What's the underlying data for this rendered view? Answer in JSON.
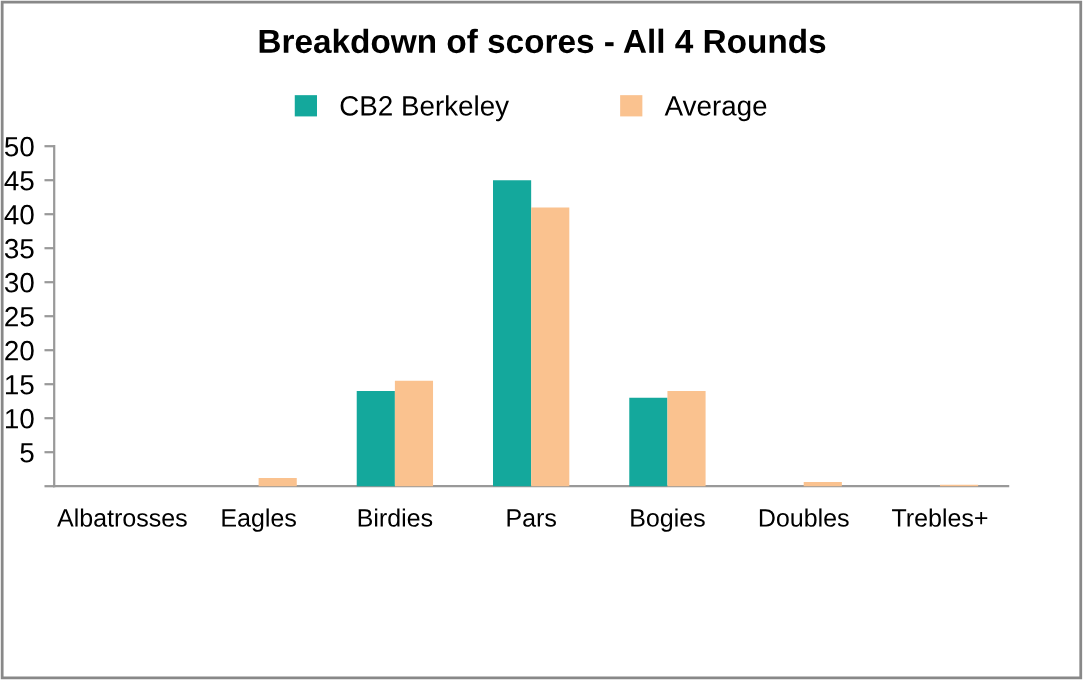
{
  "chart_data": {
    "type": "bar",
    "title": "Breakdown of scores - All 4 Rounds",
    "categories": [
      "Albatrosses",
      "Eagles",
      "Birdies",
      "Pars",
      "Bogies",
      "Doubles",
      "Trebles+"
    ],
    "series": [
      {
        "name": "CB2 Berkeley",
        "color": "#14a89c",
        "values": [
          0,
          0,
          14,
          45,
          13,
          0,
          0
        ]
      },
      {
        "name": "Average",
        "color": "#fac28f",
        "values": [
          0,
          1.2,
          15.5,
          41,
          14,
          0.6,
          0.2
        ]
      }
    ],
    "ylim": [
      0,
      50
    ],
    "yticks": [
      {
        "value": 0,
        "label": null
      },
      5,
      10,
      15,
      20,
      25,
      30,
      35,
      40,
      45,
      50
    ],
    "grid": false,
    "legend": "top"
  }
}
